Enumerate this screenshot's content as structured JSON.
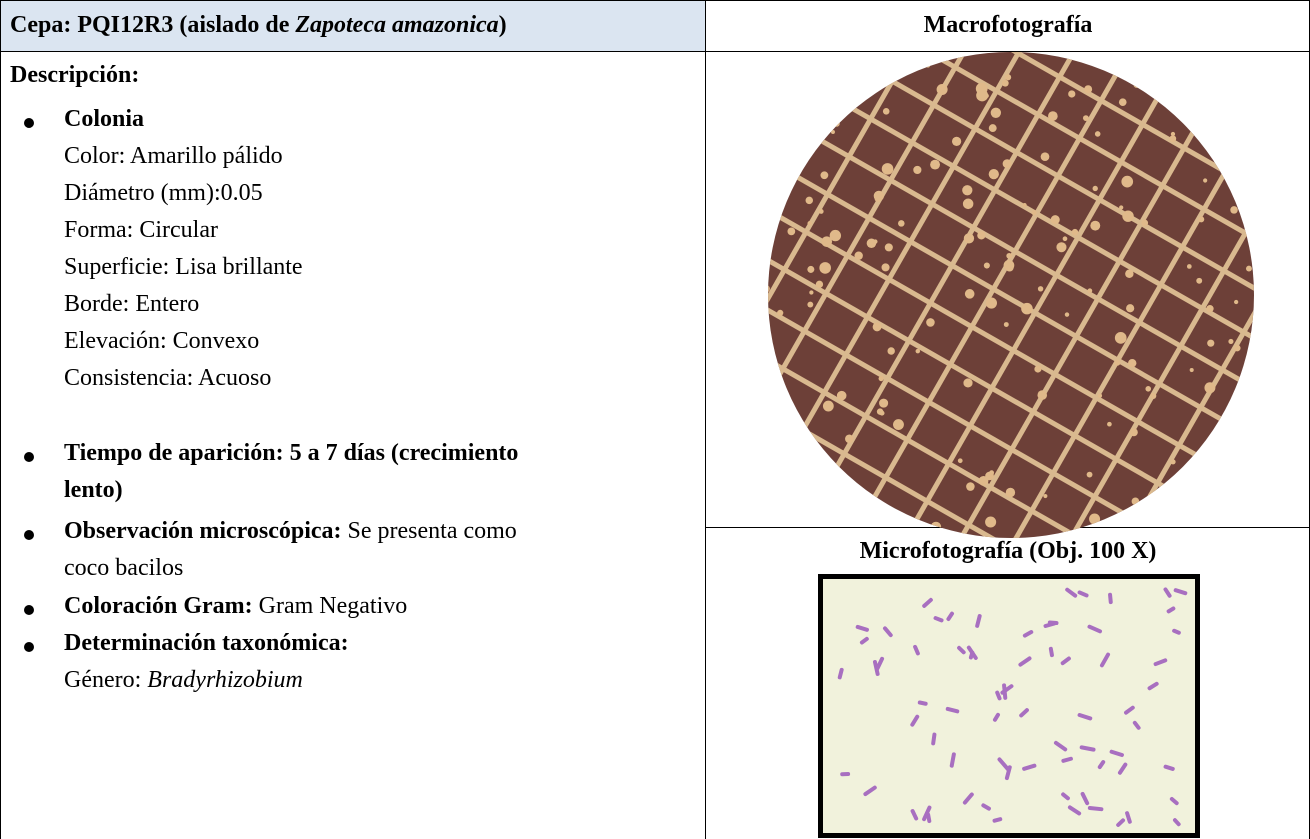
{
  "header": {
    "left": [
      "Cepa: PQI12R3 (aislado de ",
      "Zapoteca amazonica",
      ")"
    ],
    "right": "Macrofotografía"
  },
  "description": {
    "title": "Descripción:",
    "colonia": {
      "label": "Colonia",
      "lines": [
        "Color: Amarillo pálido",
        "Diámetro (mm):0.05",
        "Forma: Circular",
        "Superficie: Lisa brillante",
        "Borde: Entero",
        "Elevación: Convexo",
        "Consistencia: Acuoso"
      ]
    },
    "tiempo": [
      "Tiempo de aparición: 5 a 7 días (crecimiento",
      "lento)"
    ],
    "observacion": {
      "label": "Observación microscópica:",
      "text": [
        "Se presenta como",
        "coco bacilos"
      ]
    },
    "gram": {
      "label": "Coloración Gram:",
      "text": "Gram Negativo"
    },
    "taxonomia": {
      "label": "Determinación taxonómica:",
      "genus_label": "Género: ",
      "genus": "Bradyrhizobium"
    }
  },
  "micro_title": "Microfotografía (Obj. 100 X)"
}
